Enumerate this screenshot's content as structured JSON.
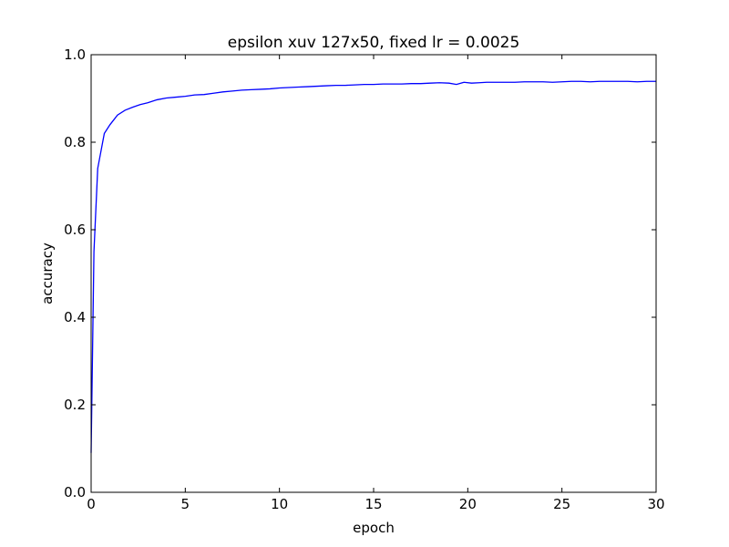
{
  "chart_data": {
    "type": "line",
    "title": "epsilon xuv 127x50, fixed lr = 0.0025",
    "xlabel": "epoch",
    "ylabel": "accuracy",
    "xlim": [
      0,
      30
    ],
    "ylim": [
      0.0,
      1.0
    ],
    "xticks": [
      0,
      5,
      10,
      15,
      20,
      25,
      30
    ],
    "xtick_labels": [
      "0",
      "5",
      "10",
      "15",
      "20",
      "25",
      "30"
    ],
    "yticks": [
      0.0,
      0.2,
      0.4,
      0.6,
      0.8,
      1.0
    ],
    "ytick_labels": [
      "0.0",
      "0.2",
      "0.4",
      "0.6",
      "0.8",
      "1.0"
    ],
    "grid": false,
    "legend": false,
    "series": [
      {
        "color": "#0000ff",
        "x": [
          0,
          0.15,
          0.35,
          0.7,
          1.0,
          1.4,
          1.8,
          2.2,
          2.6,
          3.0,
          3.5,
          4.0,
          4.5,
          5.0,
          5.5,
          6.0,
          6.5,
          7.0,
          7.5,
          8.0,
          8.5,
          9.0,
          9.5,
          10.0,
          10.5,
          11.0,
          11.5,
          12.0,
          12.5,
          13.0,
          13.5,
          14.0,
          14.5,
          15.0,
          15.5,
          16.0,
          16.5,
          17.0,
          17.5,
          18.0,
          18.5,
          19.0,
          19.4,
          19.8,
          20.2,
          20.6,
          21.0,
          21.5,
          22.0,
          22.5,
          23.0,
          23.5,
          24.0,
          24.5,
          25.0,
          25.5,
          26.0,
          26.5,
          27.0,
          27.5,
          28.0,
          28.5,
          29.0,
          29.5,
          30.0
        ],
        "y": [
          0.09,
          0.55,
          0.74,
          0.82,
          0.84,
          0.862,
          0.873,
          0.88,
          0.886,
          0.89,
          0.897,
          0.901,
          0.903,
          0.905,
          0.908,
          0.909,
          0.912,
          0.915,
          0.917,
          0.919,
          0.92,
          0.921,
          0.922,
          0.924,
          0.925,
          0.926,
          0.927,
          0.928,
          0.929,
          0.93,
          0.93,
          0.931,
          0.932,
          0.932,
          0.933,
          0.933,
          0.933,
          0.934,
          0.934,
          0.935,
          0.936,
          0.935,
          0.932,
          0.937,
          0.935,
          0.936,
          0.937,
          0.937,
          0.937,
          0.937,
          0.938,
          0.938,
          0.938,
          0.937,
          0.938,
          0.939,
          0.939,
          0.938,
          0.939,
          0.939,
          0.939,
          0.939,
          0.938,
          0.939,
          0.939
        ]
      }
    ]
  }
}
